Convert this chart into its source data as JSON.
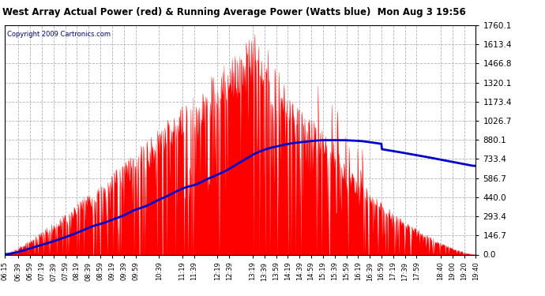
{
  "title": "West Array Actual Power (red) & Running Average Power (Watts blue)  Mon Aug 3 19:56",
  "copyright": "Copyright 2009 Cartronics.com",
  "yticks": [
    0.0,
    146.7,
    293.4,
    440.0,
    586.7,
    733.4,
    880.1,
    1026.7,
    1173.4,
    1320.1,
    1466.8,
    1613.4,
    1760.1
  ],
  "ymax": 1760.1,
  "ymin": 0.0,
  "background_color": "#ffffff",
  "plot_bg_color": "#ffffff",
  "grid_color": "#aaaaaa",
  "red_color": "#ff0000",
  "blue_color": "#0000cc",
  "title_color": "#000000",
  "xtick_labels": [
    "06:15",
    "06:39",
    "06:59",
    "07:19",
    "07:39",
    "07:59",
    "08:19",
    "08:39",
    "08:59",
    "09:19",
    "09:39",
    "09:59",
    "10:39",
    "11:19",
    "11:39",
    "12:19",
    "12:39",
    "13:19",
    "13:39",
    "13:59",
    "14:19",
    "14:39",
    "14:59",
    "15:19",
    "15:39",
    "15:59",
    "16:19",
    "16:39",
    "16:59",
    "17:19",
    "17:39",
    "17:59",
    "18:40",
    "19:00",
    "19:20",
    "19:40"
  ]
}
